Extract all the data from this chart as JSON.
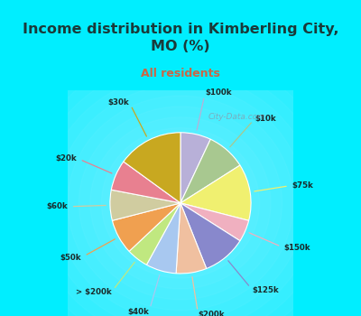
{
  "title": "Income distribution in Kimberling City,\nMO (%)",
  "subtitle": "All residents",
  "title_color": "#1a3a3a",
  "subtitle_color": "#cc6644",
  "background_cyan": "#00eeff",
  "chart_bg_color": "#e8f5f0",
  "labels_cw": [
    "$100k",
    "$10k",
    "$75k",
    "$150k",
    "$125k",
    "$200k",
    "$40k",
    "> $200k",
    "$50k",
    "$60k",
    "$20k",
    "$30k"
  ],
  "values_cw": [
    7,
    9,
    13,
    5,
    10,
    7,
    7,
    5,
    8,
    7,
    7,
    15
  ],
  "colors_cw": [
    "#b8b0d8",
    "#a8c890",
    "#f0f070",
    "#f0b0c0",
    "#8888cc",
    "#f0c0a0",
    "#a8c8f0",
    "#c0e880",
    "#f0a050",
    "#d0cca0",
    "#e88090",
    "#c8a820"
  ],
  "watermark": "City-Data.com",
  "start_angle": 90
}
